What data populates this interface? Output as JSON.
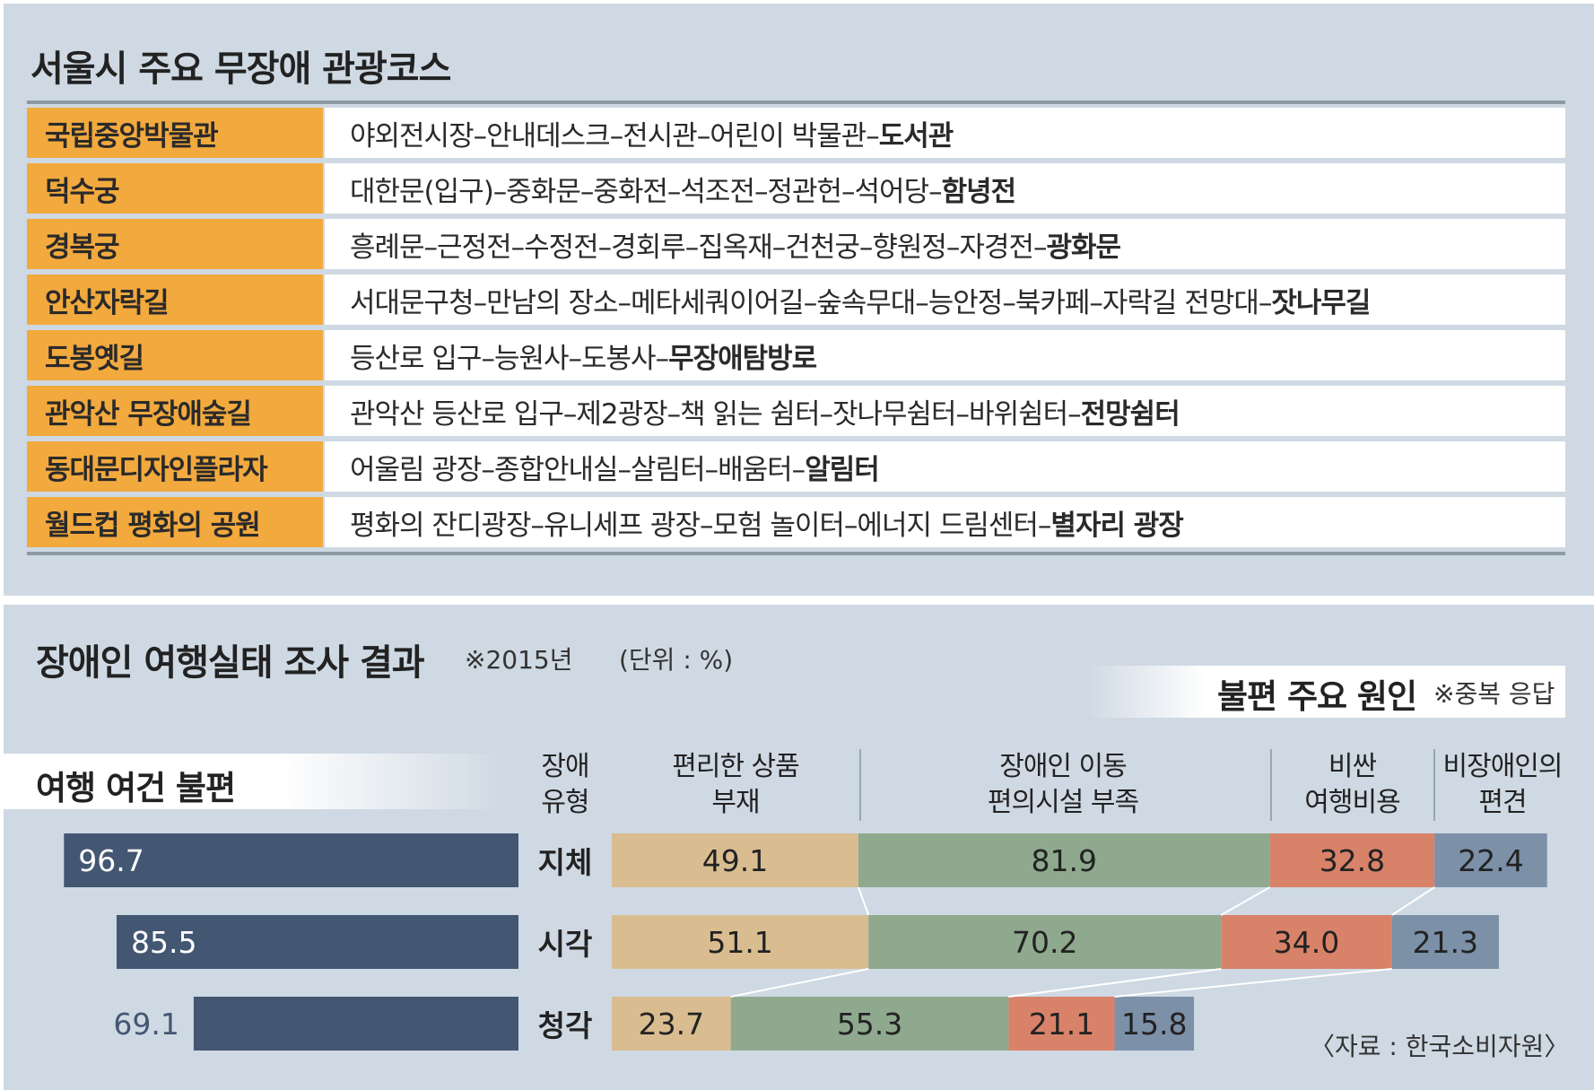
{
  "top_section": {
    "title": "서울시 주요 무장애 관광코스",
    "courses": [
      {
        "name": "국립중앙박물관",
        "route": "야외전시장–안내데스크–전시관–어린이 박물관–",
        "final": "도서관"
      },
      {
        "name": "덕수궁",
        "route": "대한문(입구)–중화문–중화전–석조전–정관헌–석어당–",
        "final": "함녕전"
      },
      {
        "name": "경복궁",
        "route": "흥례문–근정전–수정전–경회루–집옥재–건천궁–향원정–자경전–",
        "final": "광화문"
      },
      {
        "name": "안산자락길",
        "route": "서대문구청–만남의 장소–메타세쿼이어길–숲속무대–능안정–북카페–자락길 전망대–",
        "final": "잣나무길"
      },
      {
        "name": "도봉옛길",
        "route": "등산로 입구–능원사–도봉사–",
        "final": "무장애탐방로"
      },
      {
        "name": "관악산 무장애숲길",
        "route": "관악산 등산로 입구–제2광장–책 읽는 쉼터–잣나무쉼터–바위쉼터–",
        "final": "전망쉼터"
      },
      {
        "name": "동대문디자인플라자",
        "route": "어울림 광장–종합안내실–살림터–배움터–",
        "final": "알림터"
      },
      {
        "name": "월드컵 평화의 공원",
        "route": "평화의 잔디광장–유니세프 광장–모험 놀이터–에너지 드림센터–",
        "final": "별자리 광장"
      }
    ]
  },
  "bottom_section": {
    "title": "장애인 여행실태 조사 결과",
    "year_note": "※2015년",
    "unit": "(단위 : %)",
    "left_title": "여행 여건 불편",
    "cause_title": "불편 주요 원인",
    "cause_note": "※중복 응답",
    "type_header": [
      "장애",
      "유형"
    ],
    "source": "〈자료 : 한국소비자원〉"
  },
  "chart_data": [
    {
      "type": "bar",
      "title": "여행 여건 불편",
      "categories": [
        "지체",
        "시각",
        "청각"
      ],
      "values": [
        96.7,
        85.5,
        69.1
      ],
      "xlim": [
        0,
        100
      ]
    },
    {
      "type": "bar",
      "stacked": true,
      "title": "불편 주요 원인",
      "categories": [
        "지체",
        "시각",
        "청각"
      ],
      "series": [
        {
          "name": "편리한 상품 부재",
          "label": [
            "편리한 상품",
            "부재"
          ],
          "values": [
            49.1,
            51.1,
            23.7
          ],
          "color": "#d9bd90"
        },
        {
          "name": "장애인 이동 편의시설 부족",
          "label": [
            "장애인 이동",
            "편의시설 부족"
          ],
          "values": [
            81.9,
            70.2,
            55.3
          ],
          "color": "#8fa98e"
        },
        {
          "name": "비싼 여행비용",
          "label": [
            "비싼",
            "여행비용"
          ],
          "values": [
            32.8,
            34.0,
            21.1
          ],
          "color": "#d8826a"
        },
        {
          "name": "비장애인의 편견",
          "label": [
            "비장애인의",
            "편견"
          ],
          "values": [
            22.4,
            21.3,
            15.8
          ],
          "color": "#7c90a8"
        }
      ]
    }
  ],
  "colors": {
    "left_bar": "#435773",
    "course_name_bg": "#f2a93e",
    "panel_bg": "#cfd9e3"
  }
}
